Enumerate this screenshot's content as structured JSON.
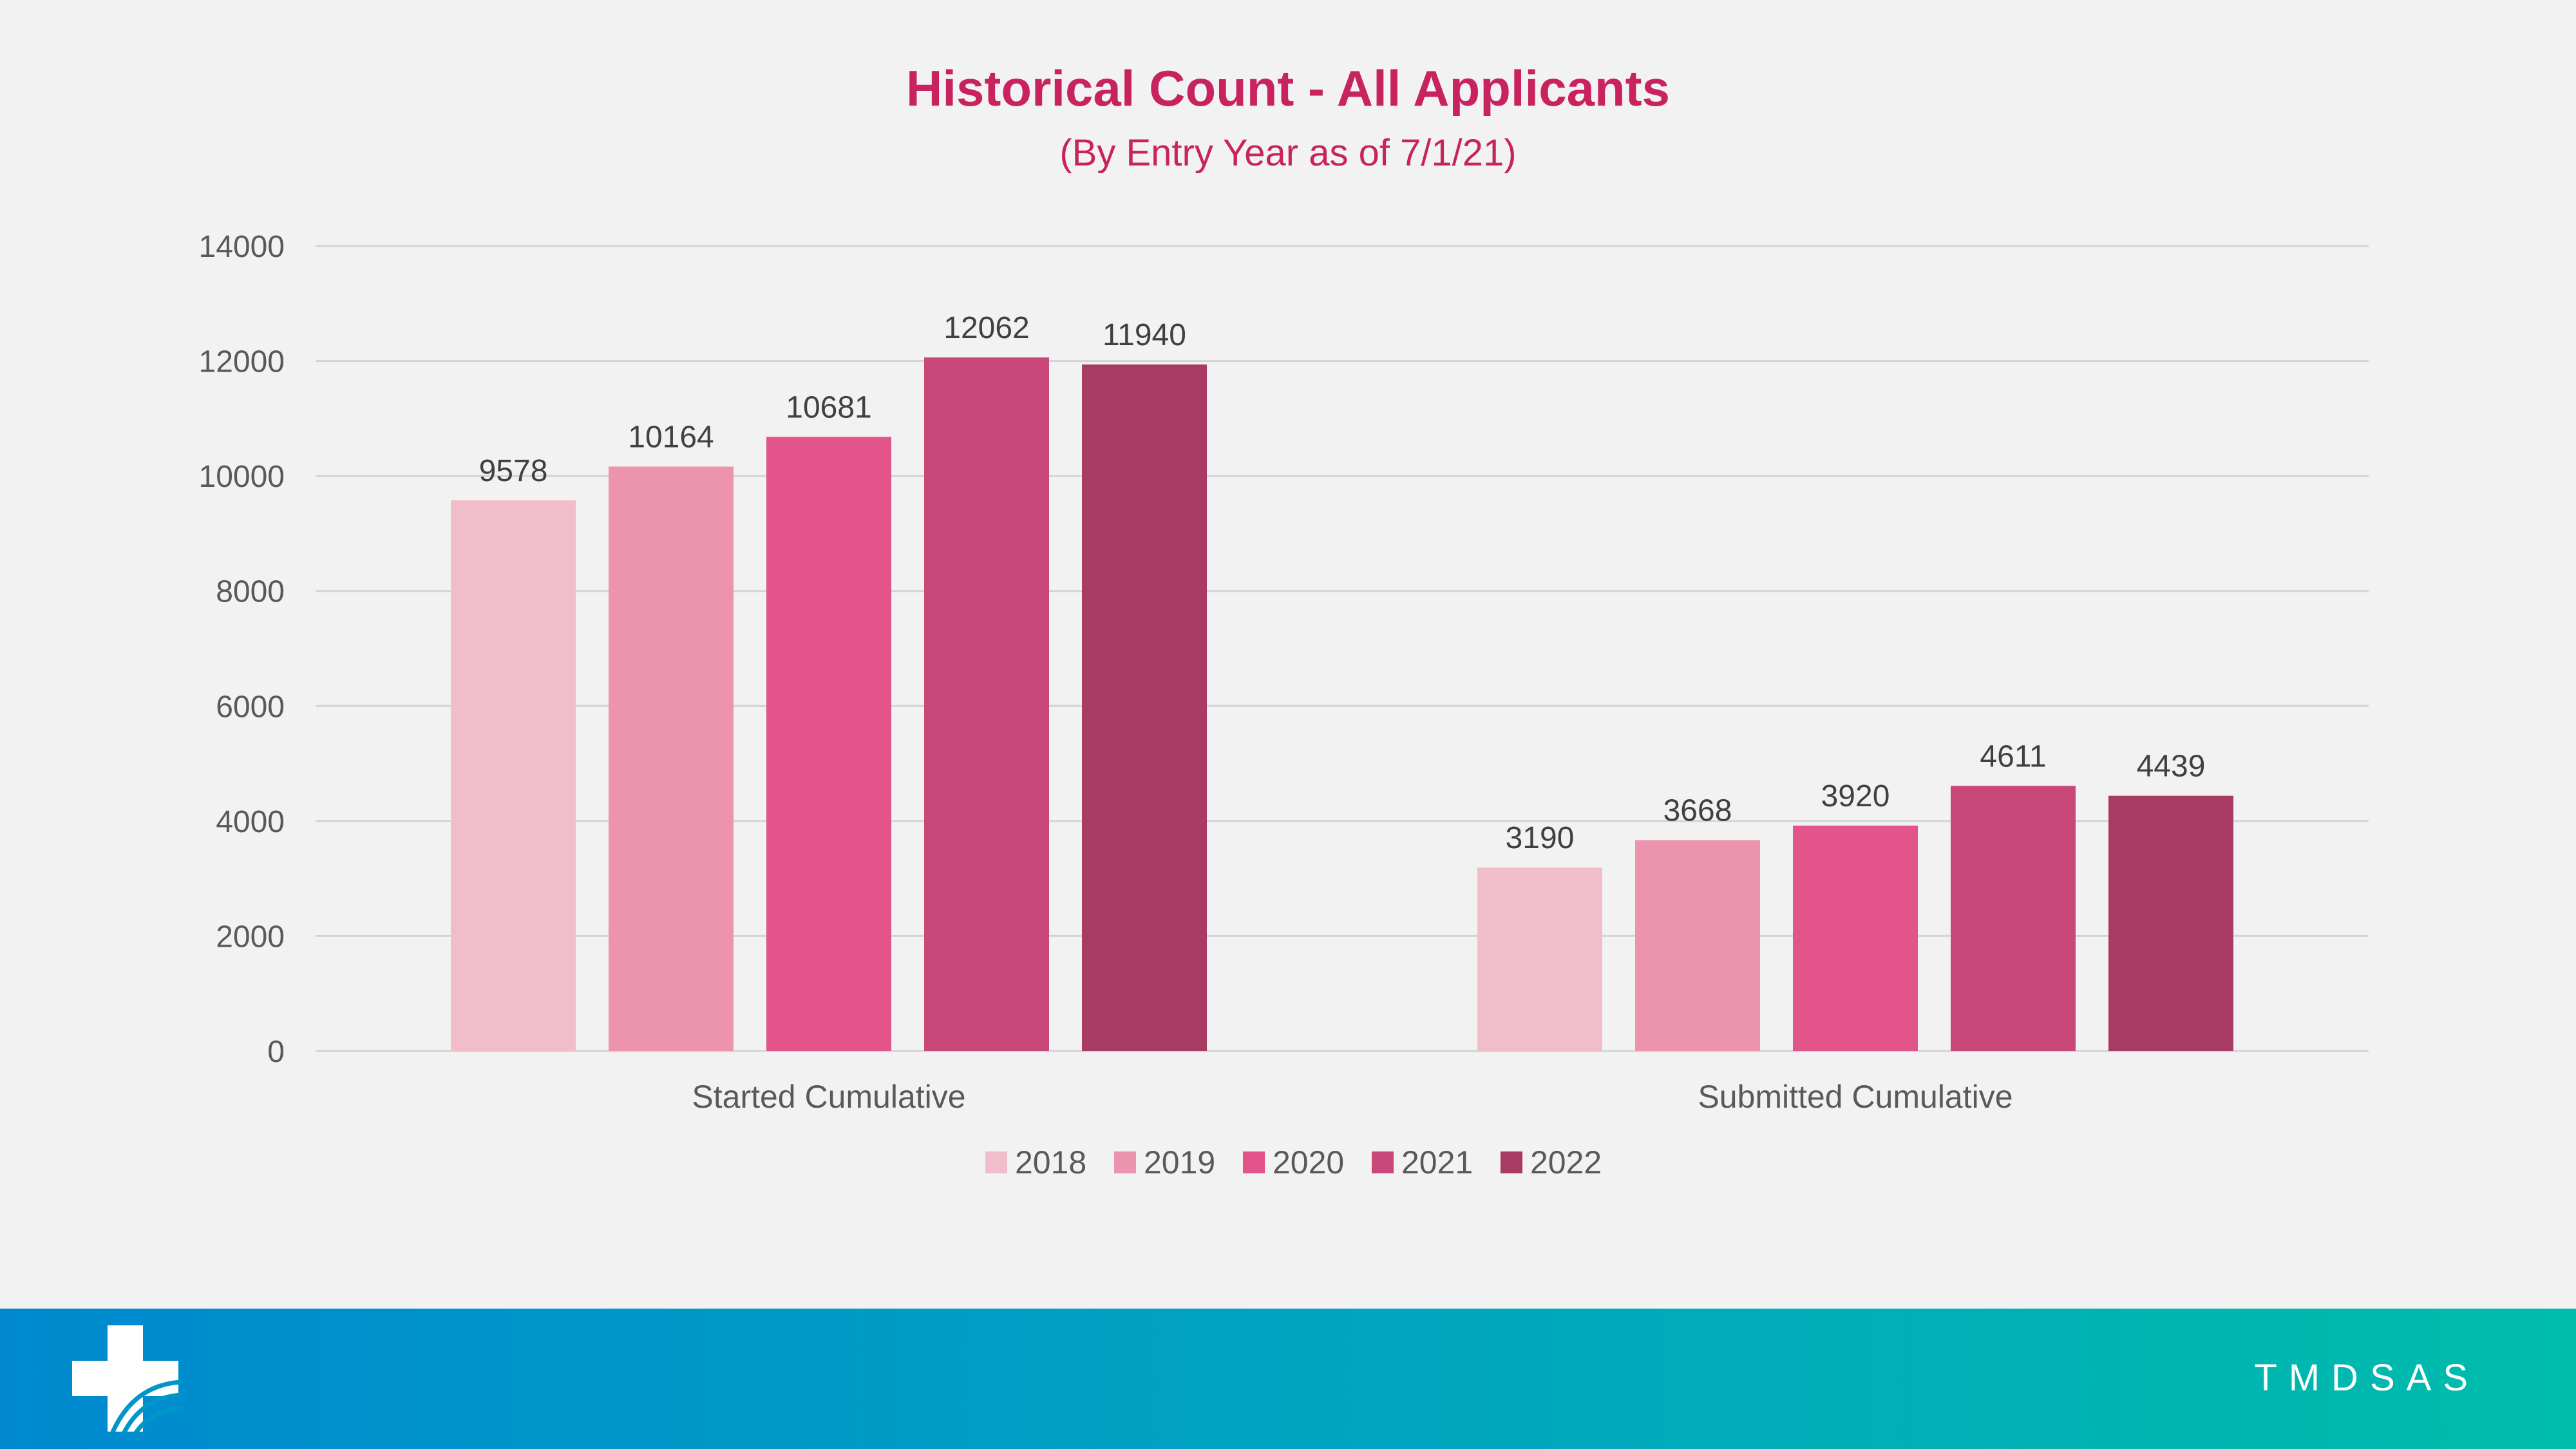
{
  "header": {
    "title": "Historical Count - All Applicants",
    "subtitle": "(By Entry Year as of 7/1/21)"
  },
  "chart_data": {
    "type": "bar",
    "title": "Historical Count - All Applicants",
    "subtitle": "(By Entry Year as of 7/1/21)",
    "xlabel": "",
    "ylabel": "",
    "ylim": [
      0,
      14000
    ],
    "yticks": [
      0,
      2000,
      4000,
      6000,
      8000,
      10000,
      12000,
      14000
    ],
    "grid": true,
    "legend_position": "bottom",
    "categories": [
      "Started Cumulative",
      "Submitted Cumulative"
    ],
    "series": [
      {
        "name": "2018",
        "color": "#f2bdca",
        "values": [
          9578,
          3190
        ]
      },
      {
        "name": "2019",
        "color": "#ec93ad",
        "values": [
          10164,
          3668
        ]
      },
      {
        "name": "2020",
        "color": "#e3548a",
        "values": [
          10681,
          3920
        ]
      },
      {
        "name": "2021",
        "color": "#c84879",
        "values": [
          12062,
          4611
        ]
      },
      {
        "name": "2022",
        "color": "#a83b64",
        "values": [
          11940,
          4439
        ]
      }
    ]
  },
  "footer": {
    "brand": "TMDSAS",
    "logo_icon": "medical-cross-icon"
  },
  "colors": {
    "title": "#c8235f",
    "footer_start": "#0089cf",
    "footer_end": "#00bcab"
  }
}
